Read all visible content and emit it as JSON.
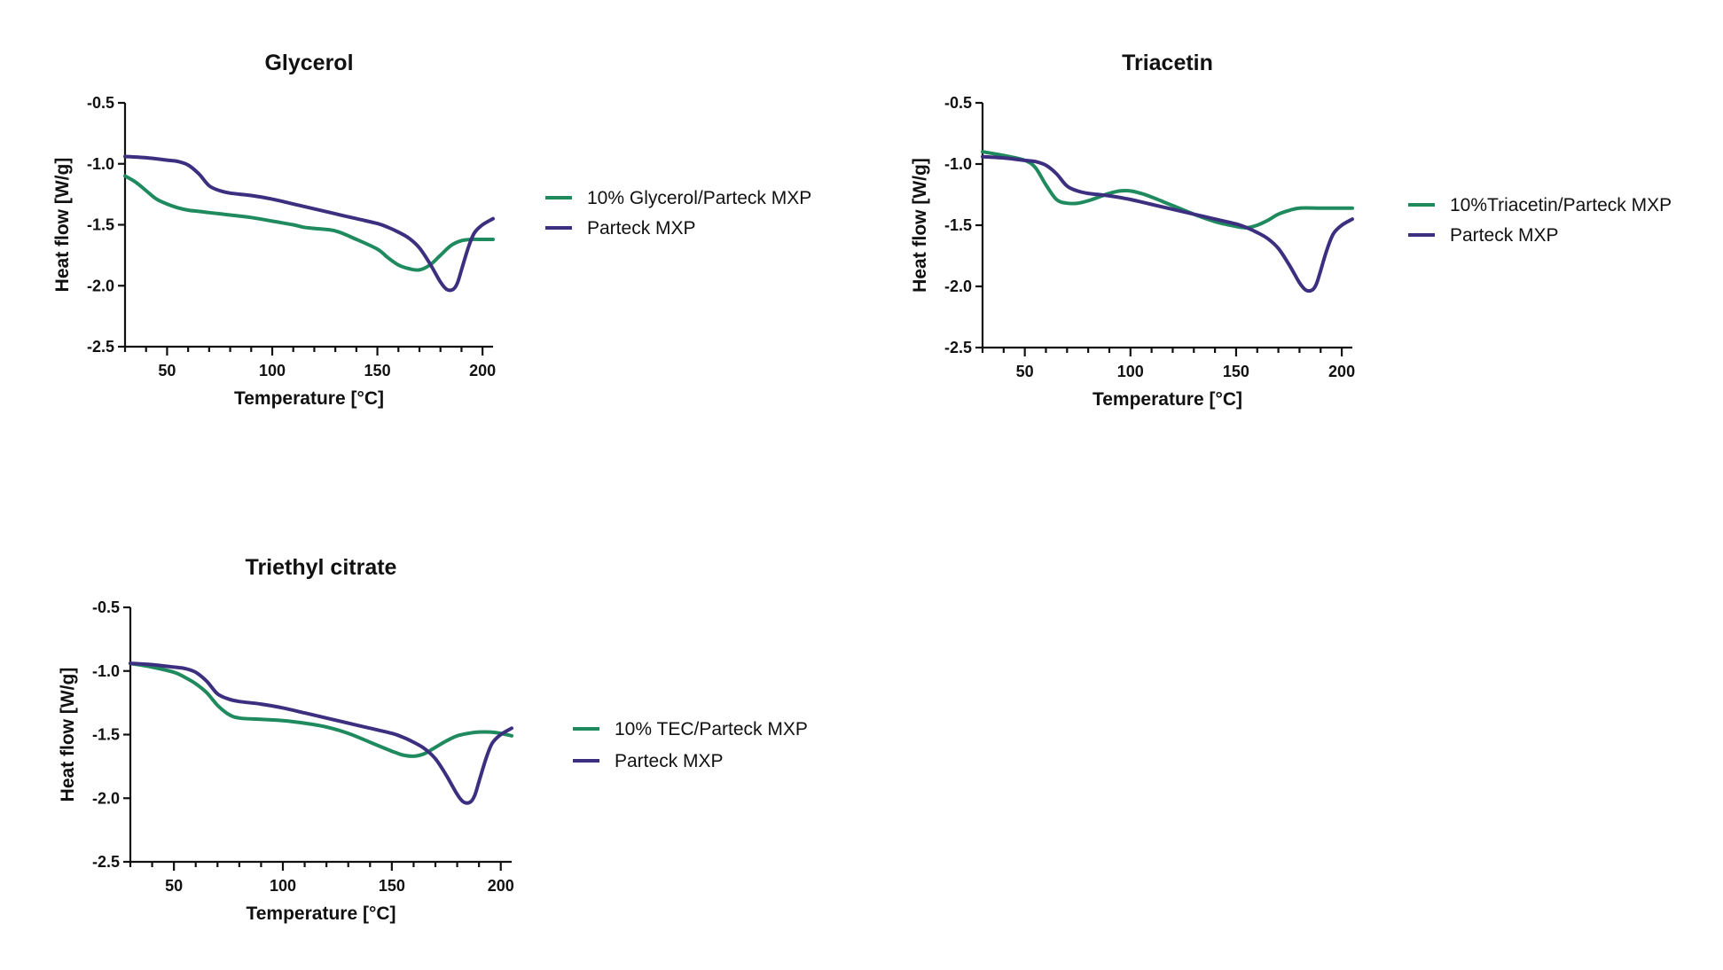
{
  "chart_data": [
    {
      "type": "line",
      "title": "Glycerol",
      "xlabel": "Temperature [°C]",
      "ylabel": "Heat flow [W/g]",
      "xlim": [
        30,
        205
      ],
      "ylim": [
        -2.5,
        -0.5
      ],
      "xticks": [
        50,
        100,
        150,
        200
      ],
      "yticks": [
        -0.5,
        -1.0,
        -1.5,
        -2.0,
        -2.5
      ],
      "ytick_labels": [
        "-0.5",
        "-1.0",
        "-1.5",
        "-2.0",
        "-2.5"
      ],
      "legend_position": "right",
      "series": [
        {
          "name": "10% Glycerol/Parteck MXP",
          "color": "#1f8a5e",
          "x": [
            30,
            35,
            40,
            45,
            50,
            55,
            60,
            65,
            70,
            80,
            90,
            100,
            110,
            115,
            120,
            130,
            140,
            150,
            155,
            160,
            165,
            170,
            175,
            180,
            185,
            190,
            195,
            200,
            205
          ],
          "y": [
            -1.1,
            -1.15,
            -1.22,
            -1.29,
            -1.33,
            -1.36,
            -1.38,
            -1.39,
            -1.4,
            -1.42,
            -1.44,
            -1.47,
            -1.5,
            -1.52,
            -1.53,
            -1.55,
            -1.62,
            -1.7,
            -1.77,
            -1.83,
            -1.86,
            -1.87,
            -1.83,
            -1.75,
            -1.67,
            -1.63,
            -1.62,
            -1.62,
            -1.62
          ]
        },
        {
          "name": "Parteck MXP",
          "color": "#3d2f80",
          "x": [
            30,
            40,
            50,
            55,
            60,
            65,
            70,
            75,
            80,
            90,
            100,
            110,
            120,
            130,
            140,
            150,
            155,
            160,
            165,
            170,
            175,
            180,
            183,
            186,
            188,
            190,
            193,
            196,
            200,
            205
          ],
          "y": [
            -0.94,
            -0.95,
            -0.97,
            -0.98,
            -1.01,
            -1.08,
            -1.18,
            -1.22,
            -1.24,
            -1.26,
            -1.29,
            -1.33,
            -1.37,
            -1.41,
            -1.45,
            -1.49,
            -1.52,
            -1.56,
            -1.61,
            -1.69,
            -1.82,
            -1.97,
            -2.03,
            -2.03,
            -1.98,
            -1.87,
            -1.7,
            -1.57,
            -1.5,
            -1.45
          ]
        }
      ]
    },
    {
      "type": "line",
      "title": "Triacetin",
      "xlabel": "Temperature [°C]",
      "ylabel": "Heat flow [W/g]",
      "xlim": [
        30,
        205
      ],
      "ylim": [
        -2.5,
        -0.5
      ],
      "xticks": [
        50,
        100,
        150,
        200
      ],
      "yticks": [
        -0.5,
        -1.0,
        -1.5,
        -2.0,
        -2.5
      ],
      "ytick_labels": [
        "-0.5",
        "-1.0",
        "-1.5",
        "-2.0",
        "-2.5"
      ],
      "legend_position": "right",
      "series": [
        {
          "name": "10%Triacetin/Parteck MXP",
          "color": "#1f8a5e",
          "x": [
            30,
            40,
            50,
            55,
            60,
            65,
            70,
            75,
            80,
            85,
            90,
            95,
            100,
            105,
            110,
            120,
            130,
            140,
            150,
            155,
            160,
            165,
            170,
            175,
            180,
            190,
            200,
            205
          ],
          "y": [
            -0.9,
            -0.93,
            -0.97,
            -1.03,
            -1.17,
            -1.29,
            -1.32,
            -1.32,
            -1.3,
            -1.27,
            -1.24,
            -1.22,
            -1.22,
            -1.24,
            -1.27,
            -1.34,
            -1.41,
            -1.47,
            -1.51,
            -1.52,
            -1.5,
            -1.46,
            -1.41,
            -1.38,
            -1.36,
            -1.36,
            -1.36,
            -1.36
          ]
        },
        {
          "name": "Parteck MXP",
          "color": "#3d2f80",
          "x": [
            30,
            40,
            50,
            55,
            60,
            65,
            70,
            75,
            80,
            90,
            100,
            110,
            120,
            130,
            140,
            150,
            155,
            160,
            165,
            170,
            175,
            180,
            183,
            186,
            188,
            190,
            193,
            196,
            200,
            205
          ],
          "y": [
            -0.94,
            -0.95,
            -0.97,
            -0.98,
            -1.01,
            -1.08,
            -1.18,
            -1.22,
            -1.24,
            -1.26,
            -1.29,
            -1.33,
            -1.37,
            -1.41,
            -1.45,
            -1.49,
            -1.52,
            -1.56,
            -1.61,
            -1.69,
            -1.82,
            -1.97,
            -2.03,
            -2.03,
            -1.98,
            -1.87,
            -1.7,
            -1.57,
            -1.5,
            -1.45
          ]
        }
      ]
    },
    {
      "type": "line",
      "title": "Triethyl citrate",
      "xlabel": "Temperature [°C]",
      "ylabel": "Heat flow [W/g]",
      "xlim": [
        30,
        205
      ],
      "ylim": [
        -2.5,
        -0.5
      ],
      "xticks": [
        50,
        100,
        150,
        200
      ],
      "yticks": [
        -0.5,
        -1.0,
        -1.5,
        -2.0,
        -2.5
      ],
      "ytick_labels": [
        "-0.5",
        "-1.0",
        "-1.5",
        "-2.0",
        "-2.5"
      ],
      "legend_position": "right",
      "series": [
        {
          "name": "10% TEC/Parteck MXP",
          "color": "#1f8a5e",
          "x": [
            30,
            40,
            50,
            55,
            60,
            65,
            70,
            75,
            80,
            90,
            100,
            110,
            120,
            130,
            140,
            150,
            155,
            160,
            165,
            170,
            175,
            180,
            185,
            190,
            195,
            200,
            205
          ],
          "y": [
            -0.94,
            -0.97,
            -1.01,
            -1.05,
            -1.1,
            -1.17,
            -1.27,
            -1.34,
            -1.37,
            -1.38,
            -1.39,
            -1.41,
            -1.44,
            -1.49,
            -1.56,
            -1.63,
            -1.66,
            -1.67,
            -1.65,
            -1.6,
            -1.55,
            -1.51,
            -1.49,
            -1.48,
            -1.48,
            -1.49,
            -1.51
          ]
        },
        {
          "name": "Parteck MXP",
          "color": "#3d2f80",
          "x": [
            30,
            40,
            50,
            55,
            60,
            65,
            70,
            75,
            80,
            90,
            100,
            110,
            120,
            130,
            140,
            150,
            155,
            160,
            165,
            170,
            175,
            180,
            183,
            186,
            188,
            190,
            193,
            196,
            200,
            205
          ],
          "y": [
            -0.94,
            -0.95,
            -0.97,
            -0.98,
            -1.01,
            -1.08,
            -1.18,
            -1.22,
            -1.24,
            -1.26,
            -1.29,
            -1.33,
            -1.37,
            -1.41,
            -1.45,
            -1.49,
            -1.52,
            -1.56,
            -1.61,
            -1.69,
            -1.82,
            -1.97,
            -2.03,
            -2.03,
            -1.98,
            -1.87,
            -1.7,
            -1.57,
            -1.5,
            -1.45
          ]
        }
      ]
    }
  ]
}
